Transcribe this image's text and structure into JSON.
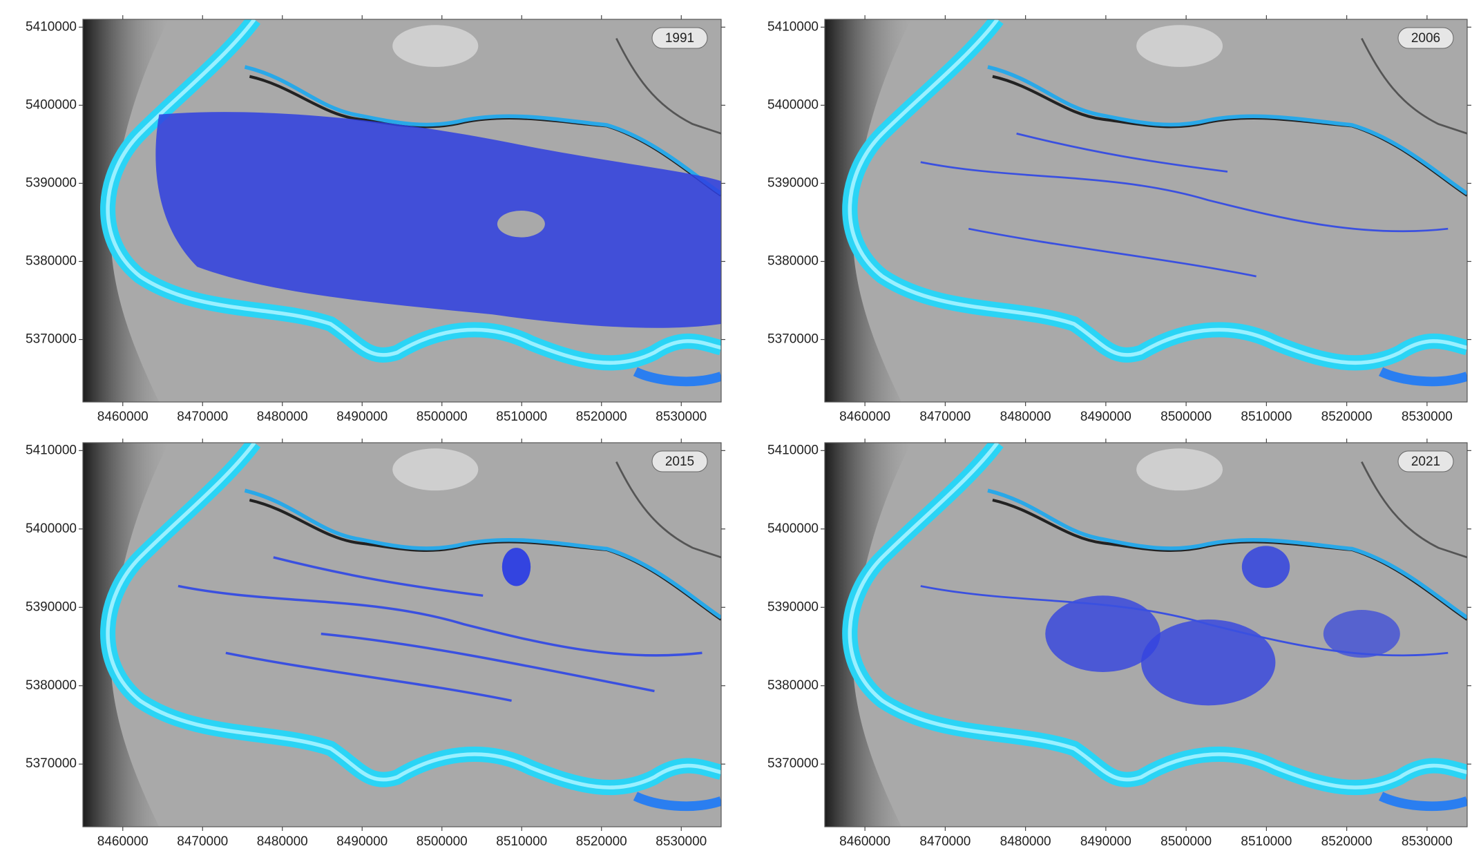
{
  "panels": [
    {
      "label": "1991",
      "xlim": [
        8455000,
        8535000
      ],
      "ylim": [
        5362000,
        5411000
      ],
      "xticks": [
        8460000,
        8470000,
        8480000,
        8490000,
        8500000,
        8510000,
        8520000,
        8530000
      ],
      "yticks": [
        5370000,
        5380000,
        5390000,
        5400000,
        5410000
      ]
    },
    {
      "label": "2006",
      "xlim": [
        8455000,
        8535000
      ],
      "ylim": [
        5362000,
        5411000
      ],
      "xticks": [
        8460000,
        8470000,
        8480000,
        8490000,
        8500000,
        8510000,
        8520000,
        8530000
      ],
      "yticks": [
        5370000,
        5380000,
        5390000,
        5400000,
        5410000
      ]
    },
    {
      "label": "2015",
      "xlim": [
        8455000,
        8535000
      ],
      "ylim": [
        5362000,
        5411000
      ],
      "xticks": [
        8460000,
        8470000,
        8480000,
        8490000,
        8500000,
        8510000,
        8520000,
        8530000
      ],
      "yticks": [
        5370000,
        5380000,
        5390000,
        5400000,
        5410000
      ]
    },
    {
      "label": "2021",
      "xlim": [
        8455000,
        8535000
      ],
      "ylim": [
        5362000,
        5411000
      ],
      "xticks": [
        8460000,
        8470000,
        8480000,
        8490000,
        8500000,
        8510000,
        8520000,
        8530000
      ],
      "yticks": [
        5370000,
        5380000,
        5390000,
        5400000,
        5410000
      ]
    }
  ]
}
